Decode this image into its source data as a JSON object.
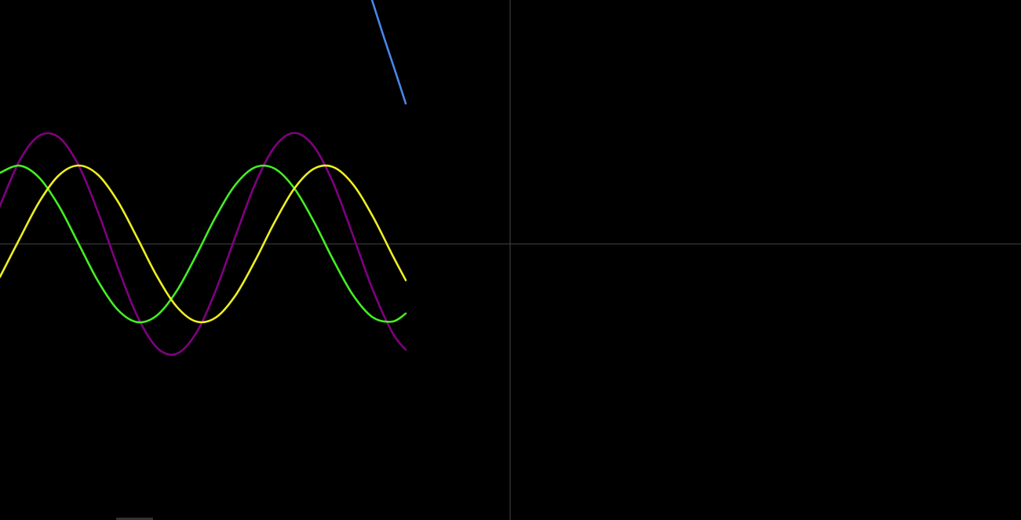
{
  "chart_data": {
    "type": "line",
    "xlim": [
      -6.5,
      6.51
    ],
    "ylim": [
      -3.52,
      3.11
    ],
    "x": [
      -6.5,
      -6.25,
      -6.0,
      -5.75,
      -5.5,
      -5.25,
      -5.0,
      -4.75,
      -4.5,
      -4.25,
      -4.0,
      -3.75,
      -3.5,
      -3.25,
      -3.0,
      -2.75,
      -2.5,
      -2.25,
      -2.0,
      -1.75,
      -1.5,
      -1.33
    ],
    "series": [
      {
        "color": "#800080",
        "values": [
          0.487,
          1.064,
          1.38,
          1.359,
          1.005,
          0.404,
          -0.295,
          -0.922,
          -1.323,
          -1.4,
          -1.135,
          -0.591,
          0.097,
          0.762,
          1.239,
          1.415,
          1.243,
          0.767,
          0.103,
          -0.585,
          -1.131,
          -1.35
        ]
      },
      {
        "color": "#44ee22",
        "values": [
          0.907,
          0.998,
          0.844,
          0.484,
          0.005,
          -0.476,
          -0.839,
          -0.997,
          -0.911,
          -0.602,
          -0.146,
          0.347,
          0.754,
          0.977,
          0.96,
          0.709,
          0.284,
          -0.211,
          -0.654,
          -0.936,
          -0.99,
          -0.887
        ]
      },
      {
        "color": "#eeee22",
        "values": [
          -0.42,
          0.066,
          0.536,
          0.875,
          1.0,
          0.88,
          0.544,
          0.075,
          -0.412,
          -0.798,
          -0.989,
          -0.938,
          -0.657,
          -0.215,
          0.279,
          0.706,
          0.959,
          0.978,
          0.757,
          0.351,
          -0.141,
          -0.463
        ]
      },
      {
        "color": "#4a86e8",
        "x": [
          -1.76,
          -1.6,
          -1.45,
          -1.33
        ],
        "values": [
          3.11,
          2.61,
          2.16,
          1.79
        ]
      }
    ]
  }
}
